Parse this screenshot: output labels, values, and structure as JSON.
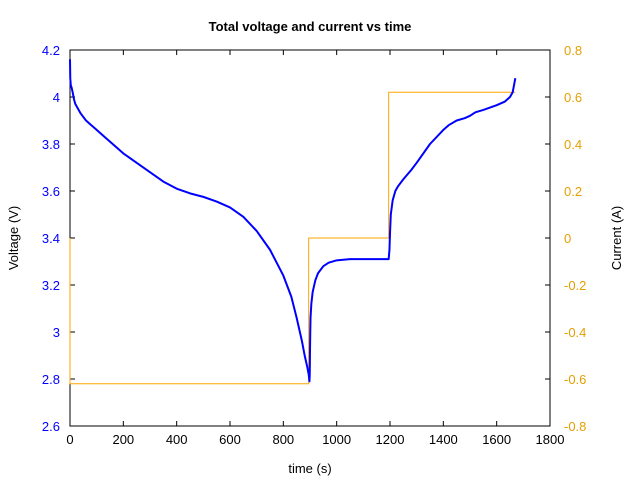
{
  "chart_data": {
    "type": "line",
    "title": "Total voltage and current vs time",
    "xlabel": "time (s)",
    "ylabel": "Voltage (V)",
    "y2label": "Current (A)",
    "xlim": [
      0,
      1800
    ],
    "ylim": [
      2.6,
      4.2
    ],
    "y2lim": [
      -0.8,
      0.8
    ],
    "xticks": [
      "0",
      "200",
      "400",
      "600",
      "800",
      "1000",
      "1200",
      "1400",
      "1600",
      "1800"
    ],
    "yticks": [
      "2.6",
      "2.8",
      "3",
      "3.2",
      "3.4",
      "3.6",
      "3.8",
      "4",
      "4.2"
    ],
    "y2ticks": [
      "-0.8",
      "-0.6",
      "-0.4",
      "-0.2",
      "0",
      "0.2",
      "0.4",
      "0.6",
      "0.8"
    ],
    "grid": false,
    "colors": {
      "voltage": "#0000ff",
      "current": "#ffa500",
      "voltage_axis": "#0000ff",
      "current_axis": "#e69f00"
    },
    "series": [
      {
        "axis": "left",
        "x": [
          0,
          1,
          3,
          6,
          10,
          15,
          20,
          25,
          30,
          40,
          60,
          80,
          100,
          130,
          160,
          200,
          250,
          300,
          350,
          400,
          450,
          500,
          550,
          600,
          650,
          700,
          750,
          800,
          830,
          850,
          870,
          880,
          890,
          895,
          897,
          898,
          899,
          900,
          901,
          902,
          905,
          910,
          920,
          930,
          950,
          970,
          1000,
          1050,
          1100,
          1150,
          1195,
          1198,
          1200,
          1203,
          1210,
          1220,
          1230,
          1250,
          1280,
          1300,
          1350,
          1400,
          1420,
          1450,
          1480,
          1500,
          1520,
          1550,
          1600,
          1630,
          1650,
          1660,
          1665,
          1670
        ],
        "y": [
          4.16,
          4.08,
          4.05,
          4.04,
          4.02,
          3.99,
          3.97,
          3.96,
          3.95,
          3.93,
          3.9,
          3.88,
          3.86,
          3.83,
          3.8,
          3.76,
          3.72,
          3.68,
          3.64,
          3.61,
          3.59,
          3.575,
          3.555,
          3.53,
          3.49,
          3.43,
          3.35,
          3.24,
          3.15,
          3.06,
          2.96,
          2.9,
          2.85,
          2.82,
          2.8,
          2.79,
          2.82,
          2.92,
          3.0,
          3.06,
          3.12,
          3.17,
          3.22,
          3.25,
          3.28,
          3.295,
          3.305,
          3.31,
          3.31,
          3.31,
          3.31,
          3.35,
          3.42,
          3.5,
          3.56,
          3.6,
          3.62,
          3.65,
          3.69,
          3.72,
          3.8,
          3.86,
          3.88,
          3.9,
          3.91,
          3.92,
          3.935,
          3.945,
          3.965,
          3.98,
          4.0,
          4.02,
          4.05,
          4.08
        ]
      },
      {
        "axis": "right",
        "x": [
          0,
          0,
          895,
          895,
          1195,
          1195,
          1670
        ],
        "y": [
          0,
          -0.62,
          -0.62,
          0,
          0,
          0.62,
          0.62
        ]
      }
    ]
  }
}
